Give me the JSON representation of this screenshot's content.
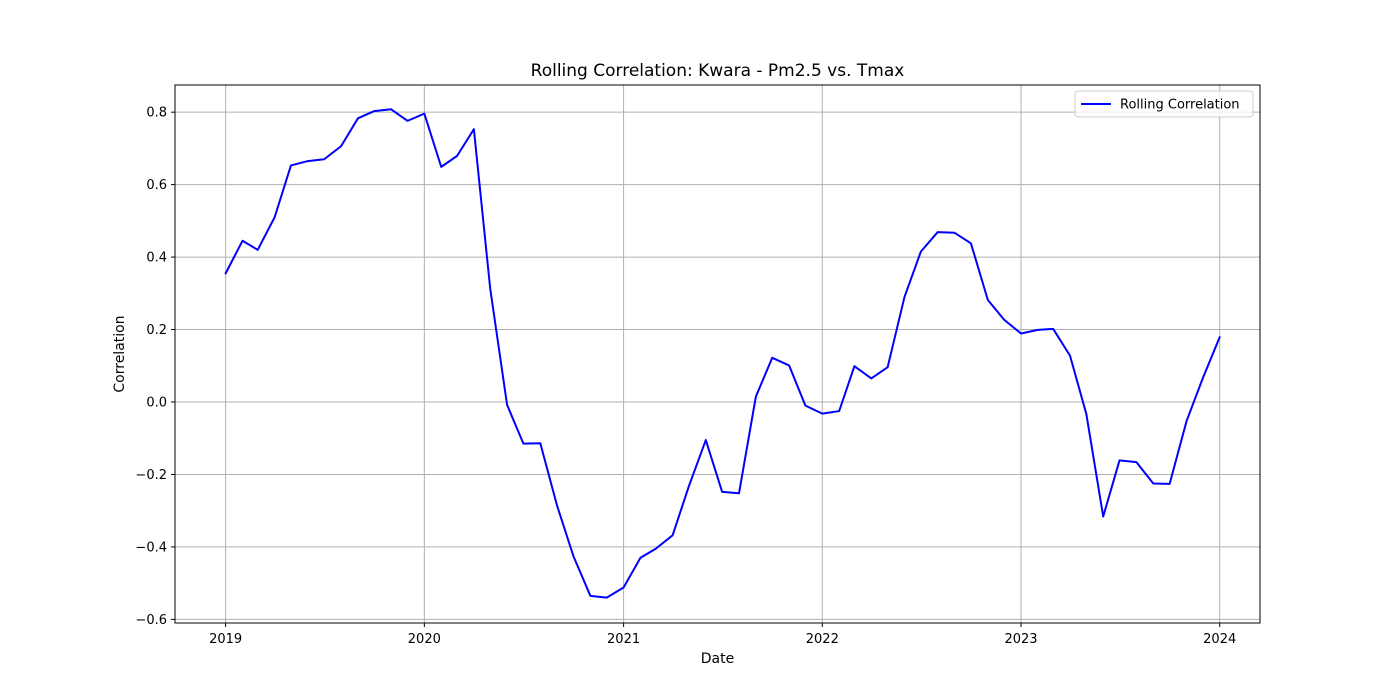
{
  "chart_data": {
    "type": "line",
    "title": "Rolling Correlation: Kwara - Pm2.5 vs. Tmax",
    "xlabel": "Date",
    "ylabel": "Correlation",
    "xlim": [
      "2018-09-30",
      "2024-03-15"
    ],
    "ylim": [
      -0.61,
      0.875
    ],
    "x_ticks": [
      "2019",
      "2020",
      "2021",
      "2022",
      "2023",
      "2024"
    ],
    "y_ticks": [
      -0.6,
      -0.4,
      -0.2,
      0.0,
      0.2,
      0.4,
      0.6,
      0.8
    ],
    "y_tick_labels": [
      "−0.6",
      "−0.4",
      "−0.2",
      "0.0",
      "0.2",
      "0.4",
      "0.6",
      "0.8"
    ],
    "grid": true,
    "legend_position": "top-right",
    "colors": {
      "series": "#0000ff",
      "grid": "#b0b0b0",
      "axes": "#000000"
    },
    "series": [
      {
        "name": "Rolling Correlation",
        "color": "#0000ff",
        "points": [
          [
            "2019-01-01",
            0.355
          ],
          [
            "2019-02-01",
            0.445
          ],
          [
            "2019-03-01",
            0.42
          ],
          [
            "2019-04-01",
            0.51
          ],
          [
            "2019-05-01",
            0.653
          ],
          [
            "2019-06-01",
            0.665
          ],
          [
            "2019-07-01",
            0.67
          ],
          [
            "2019-08-01",
            0.706
          ],
          [
            "2019-09-01",
            0.783
          ],
          [
            "2019-10-01",
            0.803
          ],
          [
            "2019-11-01",
            0.808
          ],
          [
            "2019-12-01",
            0.776
          ],
          [
            "2020-01-01",
            0.796
          ],
          [
            "2020-02-01",
            0.649
          ],
          [
            "2020-03-01",
            0.679
          ],
          [
            "2020-04-01",
            0.753
          ],
          [
            "2020-05-01",
            0.313
          ],
          [
            "2020-06-01",
            -0.008
          ],
          [
            "2020-07-01",
            -0.115
          ],
          [
            "2020-08-01",
            -0.114
          ],
          [
            "2020-09-01",
            -0.287
          ],
          [
            "2020-10-01",
            -0.426
          ],
          [
            "2020-11-01",
            -0.535
          ],
          [
            "2020-12-01",
            -0.54
          ],
          [
            "2021-01-01",
            -0.512
          ],
          [
            "2021-02-01",
            -0.43
          ],
          [
            "2021-03-01",
            -0.405
          ],
          [
            "2021-04-01",
            -0.368
          ],
          [
            "2021-05-01",
            -0.232
          ],
          [
            "2021-06-01",
            -0.105
          ],
          [
            "2021-07-01",
            -0.248
          ],
          [
            "2021-08-01",
            -0.252
          ],
          [
            "2021-09-01",
            0.015
          ],
          [
            "2021-10-01",
            0.122
          ],
          [
            "2021-11-01",
            0.101
          ],
          [
            "2021-12-01",
            -0.01
          ],
          [
            "2022-01-01",
            -0.032
          ],
          [
            "2022-02-01",
            -0.025
          ],
          [
            "2022-03-01",
            0.099
          ],
          [
            "2022-04-01",
            0.065
          ],
          [
            "2022-05-01",
            0.096
          ],
          [
            "2022-06-01",
            0.29
          ],
          [
            "2022-07-01",
            0.415
          ],
          [
            "2022-08-01",
            0.469
          ],
          [
            "2022-09-01",
            0.467
          ],
          [
            "2022-10-01",
            0.438
          ],
          [
            "2022-11-01",
            0.282
          ],
          [
            "2022-12-01",
            0.227
          ],
          [
            "2023-01-01",
            0.189
          ],
          [
            "2023-02-01",
            0.199
          ],
          [
            "2023-03-01",
            0.202
          ],
          [
            "2023-04-01",
            0.128
          ],
          [
            "2023-05-01",
            -0.033
          ],
          [
            "2023-06-01",
            -0.316
          ],
          [
            "2023-07-01",
            -0.161
          ],
          [
            "2023-08-01",
            -0.166
          ],
          [
            "2023-09-01",
            -0.225
          ],
          [
            "2023-10-01",
            -0.226
          ],
          [
            "2023-11-01",
            -0.053
          ],
          [
            "2023-12-01",
            0.066
          ],
          [
            "2024-01-01",
            0.179
          ]
        ]
      }
    ]
  }
}
